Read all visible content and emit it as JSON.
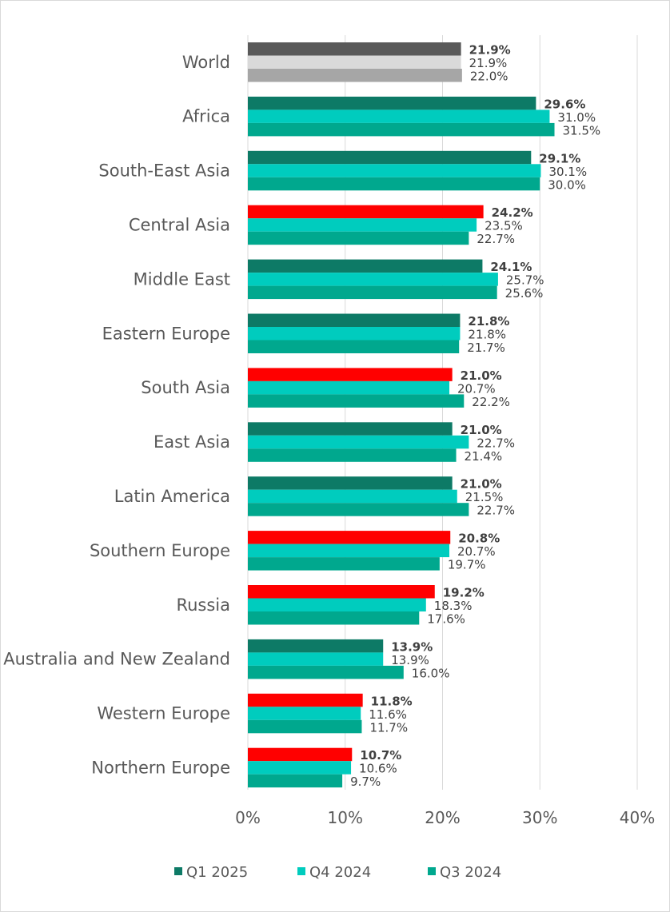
{
  "chart_data": {
    "type": "bar",
    "orientation": "horizontal",
    "categories": [
      "World",
      "Africa",
      "South-East Asia",
      "Central Asia",
      "Middle East",
      "Eastern Europe",
      "South Asia",
      "East Asia",
      "Latin America",
      "Southern Europe",
      "Russia",
      "Australia and New Zealand",
      "Western Europe",
      "Northern Europe"
    ],
    "series": [
      {
        "name": "Q1 2025",
        "values": [
          21.9,
          29.6,
          29.1,
          24.2,
          24.1,
          21.8,
          21.0,
          21.0,
          21.0,
          20.8,
          19.2,
          13.9,
          11.8,
          10.7
        ],
        "value_labels": [
          "21.9%",
          "29.6%",
          "29.1%",
          "24.2%",
          "24.1%",
          "21.8%",
          "21.0%",
          "21.0%",
          "21.0%",
          "20.8%",
          "19.2%",
          "13.9%",
          "11.8%",
          "10.7%"
        ]
      },
      {
        "name": "Q4 2024",
        "values": [
          21.9,
          31.0,
          30.1,
          23.5,
          25.7,
          21.8,
          20.7,
          22.7,
          21.5,
          20.7,
          18.3,
          13.9,
          11.6,
          10.6
        ],
        "value_labels": [
          "21.9%",
          "31.0%",
          "30.1%",
          "23.5%",
          "25.7%",
          "21.8%",
          "20.7%",
          "22.7%",
          "21.5%",
          "20.7%",
          "18.3%",
          "13.9%",
          "11.6%",
          "10.6%"
        ]
      },
      {
        "name": "Q3 2024",
        "values": [
          22.0,
          31.5,
          30.0,
          22.7,
          25.6,
          21.7,
          22.2,
          21.4,
          22.7,
          19.7,
          17.6,
          16.0,
          11.7,
          9.7
        ],
        "value_labels": [
          "22.0%",
          "31.5%",
          "30.0%",
          "22.7%",
          "25.6%",
          "21.7%",
          "22.2%",
          "21.4%",
          "22.7%",
          "19.7%",
          "17.6%",
          "16.0%",
          "11.7%",
          "9.7%"
        ]
      }
    ],
    "colors": {
      "q1": "#0d7a66",
      "q4": "#00ccbe",
      "q3": "#00a88e",
      "highlight_increase": "#ff0000",
      "world": [
        "#595959",
        "#d9d9d9",
        "#a6a6a6"
      ]
    },
    "highlighted_q1_categories": [
      "Central Asia",
      "South Asia",
      "Southern Europe",
      "Russia",
      "Western Europe",
      "Northern Europe"
    ],
    "xlim": [
      0,
      40
    ],
    "xticks": [
      0,
      10,
      20,
      30,
      40
    ],
    "xtick_labels": [
      "0%",
      "10%",
      "20%",
      "30%",
      "40%"
    ],
    "grid": true,
    "legend_position": "bottom",
    "legend": [
      {
        "label": "Q1 2025"
      },
      {
        "label": "Q4 2024"
      },
      {
        "label": "Q3 2024"
      }
    ]
  }
}
